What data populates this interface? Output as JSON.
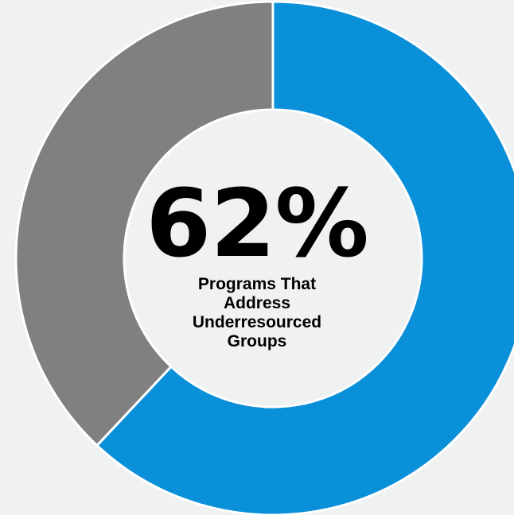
{
  "chart_data": {
    "type": "pie",
    "variant": "donut",
    "slices": [
      {
        "label": "Programs That Address Underresourced Groups",
        "value": 62,
        "color": "#0a8fd9"
      },
      {
        "label": "",
        "value": 38,
        "color": "#808080"
      }
    ],
    "center_value": "62%",
    "center_caption": "Programs That Address Underresourced Groups",
    "title": "",
    "legend": "none"
  },
  "colors": {
    "background": "#f0f2f2",
    "separator": "#ffffff"
  }
}
